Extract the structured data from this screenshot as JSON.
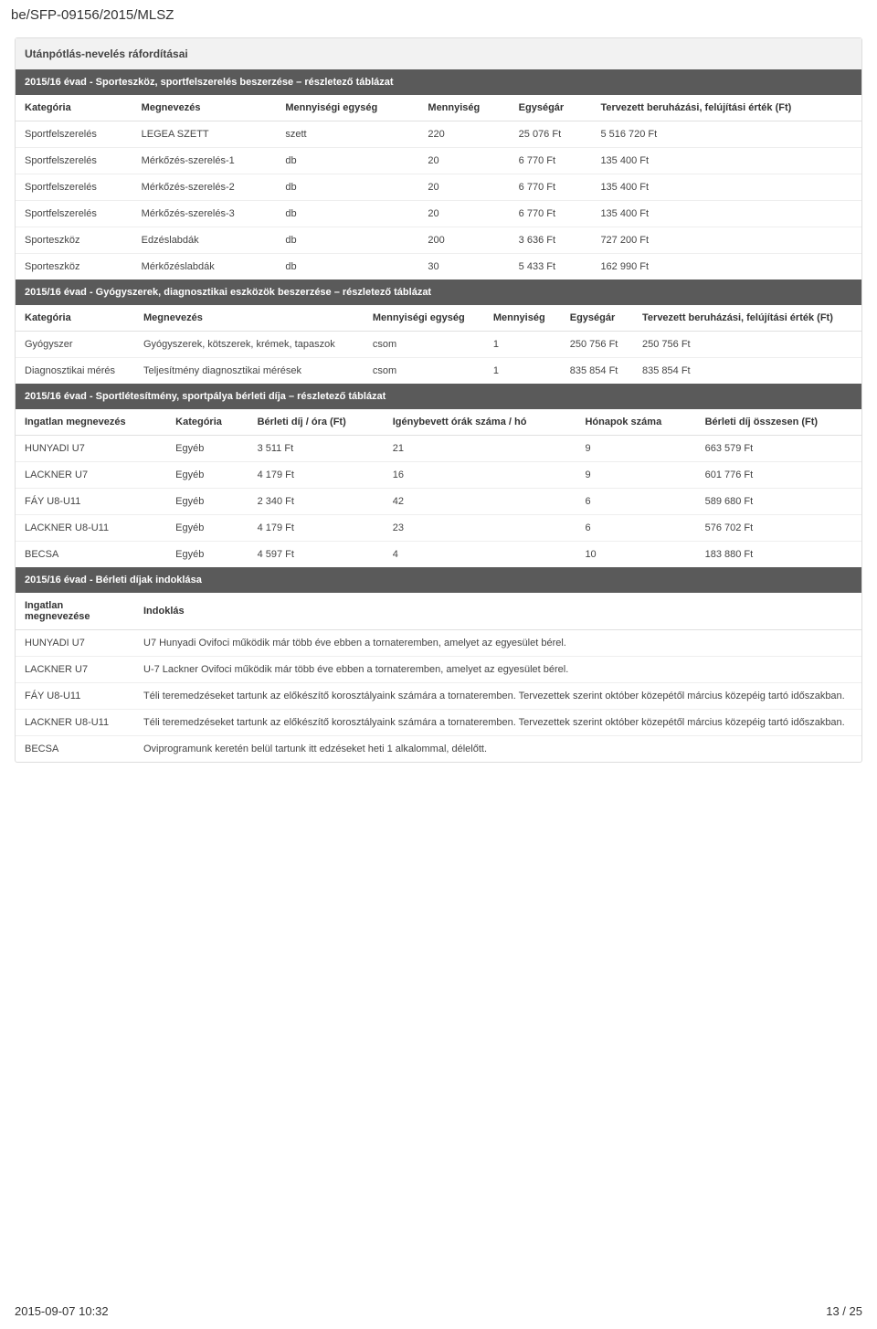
{
  "header": "be/SFP-09156/2015/MLSZ",
  "section1": {
    "title": "Utánpótlás-nevelés ráfordításai",
    "band": "2015/16 évad - Sporteszköz, sportfelszerelés beszerzése – részletező táblázat",
    "cols": [
      "Kategória",
      "Megnevezés",
      "Mennyiségi egység",
      "Mennyiség",
      "Egységár",
      "Tervezett beruházási, felújítási érték (Ft)"
    ],
    "rows": [
      [
        "Sportfelszerelés",
        "LEGEA SZETT",
        "szett",
        "220",
        "25 076 Ft",
        "5 516 720 Ft"
      ],
      [
        "Sportfelszerelés",
        "Mérkőzés-szerelés-1",
        "db",
        "20",
        "6 770 Ft",
        "135 400 Ft"
      ],
      [
        "Sportfelszerelés",
        "Mérkőzés-szerelés-2",
        "db",
        "20",
        "6 770 Ft",
        "135 400 Ft"
      ],
      [
        "Sportfelszerelés",
        "Mérkőzés-szerelés-3",
        "db",
        "20",
        "6 770 Ft",
        "135 400 Ft"
      ],
      [
        "Sporteszköz",
        "Edzéslabdák",
        "db",
        "200",
        "3 636 Ft",
        "727 200 Ft"
      ],
      [
        "Sporteszköz",
        "Mérkőzéslabdák",
        "db",
        "30",
        "5 433 Ft",
        "162 990 Ft"
      ]
    ]
  },
  "section2": {
    "band": "2015/16 évad - Gyógyszerek, diagnosztikai eszközök beszerzése – részletező táblázat",
    "cols": [
      "Kategória",
      "Megnevezés",
      "Mennyiségi egység",
      "Mennyiség",
      "Egységár",
      "Tervezett beruházási, felújítási érték (Ft)"
    ],
    "rows": [
      [
        "Gyógyszer",
        "Gyógyszerek, kötszerek, krémek, tapaszok",
        "csom",
        "1",
        "250 756 Ft",
        "250 756 Ft"
      ],
      [
        "Diagnosztikai mérés",
        "Teljesítmény diagnosztikai mérések",
        "csom",
        "1",
        "835 854 Ft",
        "835 854 Ft"
      ]
    ]
  },
  "section3": {
    "band": "2015/16 évad - Sportlétesítmény, sportpálya bérleti díja – részletező táblázat",
    "cols": [
      "Ingatlan megnevezés",
      "Kategória",
      "Bérleti díj / óra (Ft)",
      "Igénybevett órák száma / hó",
      "Hónapok száma",
      "Bérleti díj összesen (Ft)"
    ],
    "rows": [
      [
        "HUNYADI U7",
        "Egyéb",
        "3 511 Ft",
        "21",
        "9",
        "663 579 Ft"
      ],
      [
        "LACKNER U7",
        "Egyéb",
        "4 179 Ft",
        "16",
        "9",
        "601 776 Ft"
      ],
      [
        "FÁY U8-U11",
        "Egyéb",
        "2 340 Ft",
        "42",
        "6",
        "589 680 Ft"
      ],
      [
        "LACKNER U8-U11",
        "Egyéb",
        "4 179 Ft",
        "23",
        "6",
        "576 702 Ft"
      ],
      [
        "BECSA",
        "Egyéb",
        "4 597 Ft",
        "4",
        "10",
        "183 880 Ft"
      ]
    ]
  },
  "section4": {
    "band": "2015/16 évad - Bérleti díjak indoklása",
    "cols": [
      "Ingatlan megnevezése",
      "Indoklás"
    ],
    "rows": [
      [
        "HUNYADI U7",
        "U7 Hunyadi Ovifoci működik már több éve ebben a tornateremben, amelyet az egyesület bérel."
      ],
      [
        "LACKNER U7",
        "U-7 Lackner Ovifoci működik már több éve ebben a tornateremben, amelyet az egyesület bérel."
      ],
      [
        "FÁY U8-U11",
        "Téli teremedzéseket tartunk az előkészítő korosztályaink számára a tornateremben. Tervezettek szerint október közepétől március közepéig tartó időszakban."
      ],
      [
        "LACKNER U8-U11",
        "Téli teremedzéseket tartunk az előkészítő korosztályaink számára a tornateremben. Tervezettek szerint október közepétől március közepéig tartó időszakban."
      ],
      [
        "BECSA",
        "Oviprogramunk keretén belül tartunk itt edzéseket heti 1 alkalommal, délelőtt."
      ]
    ]
  },
  "footer": {
    "left": "2015-09-07 10:32",
    "right": "13 / 25"
  }
}
